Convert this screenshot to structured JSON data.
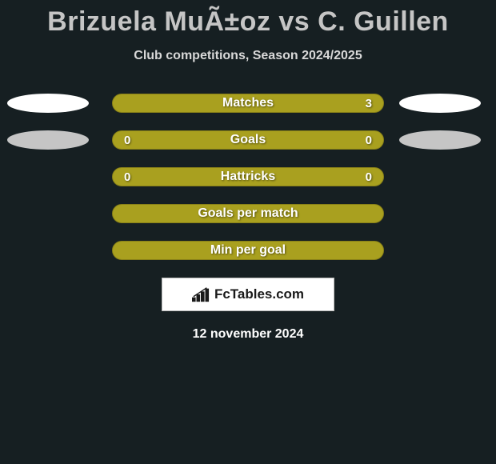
{
  "title": "Brizuela MuÃ±oz vs C. Guillen",
  "subtitle": "Club competitions, Season 2024/2025",
  "stats": [
    {
      "label": "Matches",
      "left_val": "",
      "right_val": "3",
      "left_ellipse_show": true,
      "right_ellipse_show": true,
      "left_ellipse_color": "#ffffff",
      "right_ellipse_color": "#ffffff"
    },
    {
      "label": "Goals",
      "left_val": "0",
      "right_val": "0",
      "left_ellipse_show": true,
      "right_ellipse_show": true,
      "left_ellipse_color": "#c5c5c5",
      "right_ellipse_color": "#c5c5c5"
    },
    {
      "label": "Hattricks",
      "left_val": "0",
      "right_val": "0",
      "left_ellipse_show": false,
      "right_ellipse_show": false,
      "left_ellipse_color": "",
      "right_ellipse_color": ""
    },
    {
      "label": "Goals per match",
      "left_val": "",
      "right_val": "",
      "left_ellipse_show": false,
      "right_ellipse_show": false,
      "left_ellipse_color": "",
      "right_ellipse_color": ""
    },
    {
      "label": "Min per goal",
      "left_val": "",
      "right_val": "",
      "left_ellipse_show": false,
      "right_ellipse_show": false,
      "left_ellipse_color": "",
      "right_ellipse_color": ""
    }
  ],
  "bar_color": "#a9a01f",
  "bar_border_color": "#888018",
  "background_color": "#161f22",
  "logo_text": "FcTables.com",
  "date": "12 november 2024"
}
